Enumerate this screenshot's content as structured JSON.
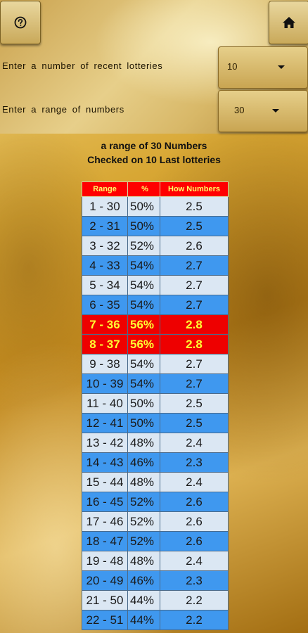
{
  "controls": {
    "help_icon": "question-circle-icon",
    "home_icon": "home-icon",
    "recent_lotteries_label": "Enter a number of recent lotteries",
    "recent_lotteries_value": "10",
    "range_label": "Enter a range of numbers",
    "range_value": "30"
  },
  "summary": {
    "line1": "a range of 30 Numbers",
    "line2": "Checked on 10 Last lotteries"
  },
  "table": {
    "headers": [
      "Range",
      "%",
      "How Numbers"
    ],
    "rows": [
      {
        "range": "1 - 30",
        "pct": "50%",
        "how": "2.5",
        "style": "light"
      },
      {
        "range": "2 - 31",
        "pct": "50%",
        "how": "2.5",
        "style": "blue"
      },
      {
        "range": "3 - 32",
        "pct": "52%",
        "how": "2.6",
        "style": "light"
      },
      {
        "range": "4 - 33",
        "pct": "54%",
        "how": "2.7",
        "style": "blue"
      },
      {
        "range": "5 - 34",
        "pct": "54%",
        "how": "2.7",
        "style": "light"
      },
      {
        "range": "6 - 35",
        "pct": "54%",
        "how": "2.7",
        "style": "blue"
      },
      {
        "range": "7 - 36",
        "pct": "56%",
        "how": "2.8",
        "style": "red"
      },
      {
        "range": "8 - 37",
        "pct": "56%",
        "how": "2.8",
        "style": "red"
      },
      {
        "range": "9 - 38",
        "pct": "54%",
        "how": "2.7",
        "style": "light"
      },
      {
        "range": "10 - 39",
        "pct": "54%",
        "how": "2.7",
        "style": "blue"
      },
      {
        "range": "11 - 40",
        "pct": "50%",
        "how": "2.5",
        "style": "light"
      },
      {
        "range": "12 - 41",
        "pct": "50%",
        "how": "2.5",
        "style": "blue"
      },
      {
        "range": "13 - 42",
        "pct": "48%",
        "how": "2.4",
        "style": "light"
      },
      {
        "range": "14 - 43",
        "pct": "46%",
        "how": "2.3",
        "style": "blue"
      },
      {
        "range": "15 - 44",
        "pct": "48%",
        "how": "2.4",
        "style": "light"
      },
      {
        "range": "16 - 45",
        "pct": "52%",
        "how": "2.6",
        "style": "blue"
      },
      {
        "range": "17 - 46",
        "pct": "52%",
        "how": "2.6",
        "style": "light"
      },
      {
        "range": "18 - 47",
        "pct": "52%",
        "how": "2.6",
        "style": "blue"
      },
      {
        "range": "19 - 48",
        "pct": "48%",
        "how": "2.4",
        "style": "light"
      },
      {
        "range": "20 - 49",
        "pct": "46%",
        "how": "2.3",
        "style": "blue"
      },
      {
        "range": "21 - 50",
        "pct": "44%",
        "how": "2.2",
        "style": "light"
      },
      {
        "range": "22 - 51",
        "pct": "44%",
        "how": "2.2",
        "style": "blue"
      }
    ]
  },
  "colors": {
    "header_bg": "#ff0000",
    "header_text": "#ffff66",
    "row_light": "#dbe7f3",
    "row_blue": "#3f98ef",
    "row_highlight": "#ee0000",
    "highlight_text": "#ffff33"
  }
}
